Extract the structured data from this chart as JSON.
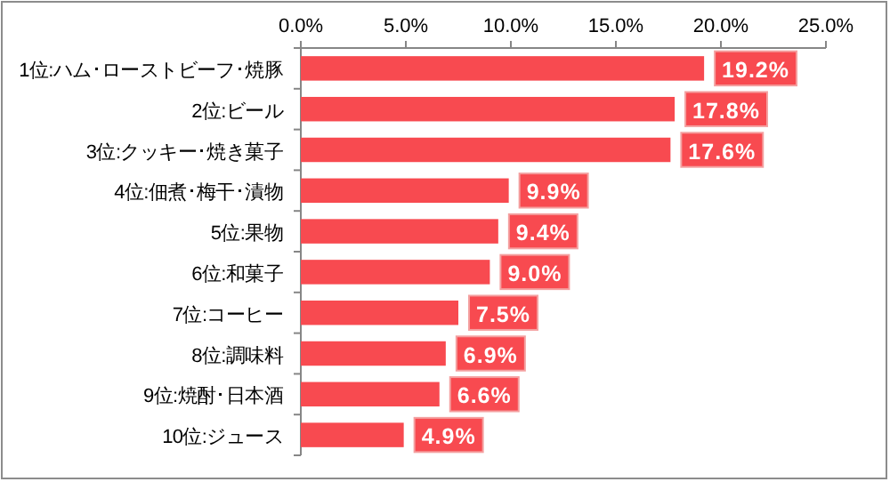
{
  "chart_data": {
    "type": "bar",
    "orientation": "horizontal",
    "categories": [
      "1位:ハム･ローストビーフ･焼豚",
      "2位:ビール",
      "3位:クッキー･焼き菓子",
      "4位:佃煮･梅干･漬物",
      "5位:果物",
      "6位:和菓子",
      "7位:コーヒー",
      "8位:調味料",
      "9位:焼酎･日本酒",
      "10位:ジュース"
    ],
    "values": [
      19.2,
      17.8,
      17.6,
      9.9,
      9.4,
      9.0,
      7.5,
      6.9,
      6.6,
      4.9
    ],
    "value_labels": [
      "19.2%",
      "17.8%",
      "17.6%",
      "9.9%",
      "9.4%",
      "9.0%",
      "7.5%",
      "6.9%",
      "6.6%",
      "4.9%"
    ],
    "color": "#f84a50",
    "xlim": [
      0,
      25
    ],
    "xticks": [
      {
        "value": 0,
        "label": "0.0%"
      },
      {
        "value": 5,
        "label": "5.0%"
      },
      {
        "value": 10,
        "label": "10.0%"
      },
      {
        "value": 15,
        "label": "15.0%"
      },
      {
        "value": 20,
        "label": "20.0%"
      },
      {
        "value": 25,
        "label": "25.0%"
      }
    ],
    "grid": false
  }
}
